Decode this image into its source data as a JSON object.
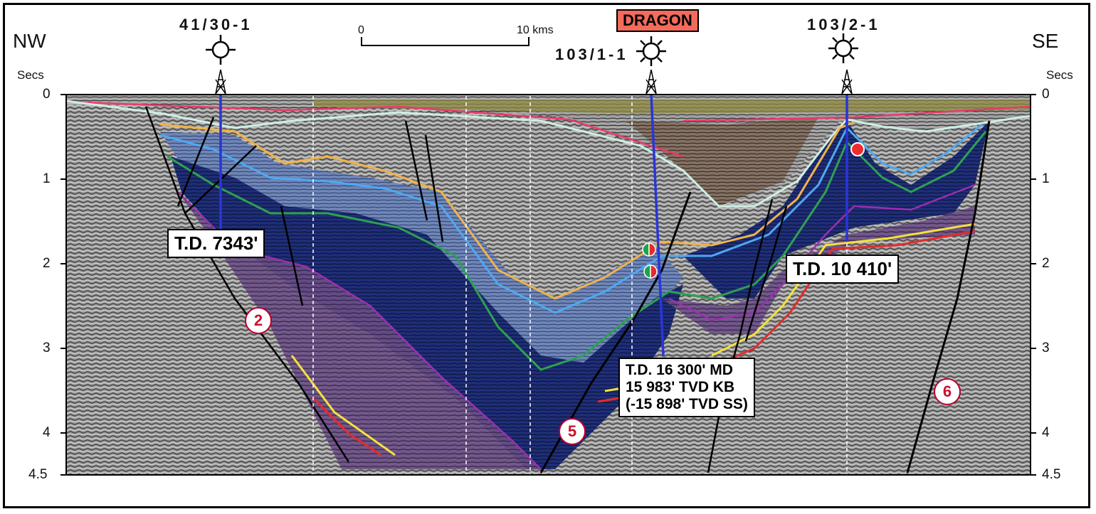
{
  "orientation": {
    "left": "NW",
    "right": "SE"
  },
  "axis": {
    "unit_left": "Secs",
    "unit_right": "Secs",
    "ticks": [
      "0",
      "1",
      "2",
      "3",
      "4",
      "4.5"
    ]
  },
  "scale_bar": {
    "start": "0",
    "end": "10 kms"
  },
  "field_label": "DRAGON",
  "wells": [
    {
      "name": "41/30-1",
      "td": "T.D. 7343'"
    },
    {
      "name": "103/1-1",
      "td_lines": [
        "T.D. 16 300' MD",
        "15 983' TVD KB",
        "(-15 898' TVD SS)"
      ]
    },
    {
      "name": "103/2-1",
      "td": "T.D. 10 410'"
    }
  ],
  "fault_labels": [
    "2",
    "5",
    "6"
  ],
  "colors": {
    "dragon_box": "#f26b5b",
    "badge": "#c8102e",
    "well_path": "#2a35d8"
  }
}
